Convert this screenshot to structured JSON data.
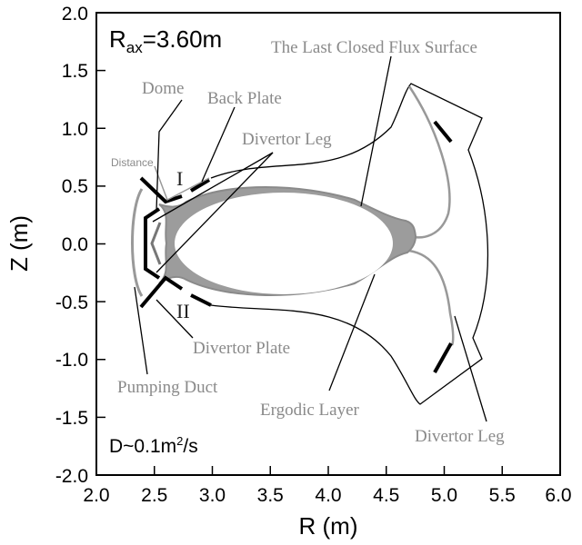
{
  "chart_data": {
    "type": "diagram",
    "xlabel": "R (m)",
    "ylabel": "Z (m)",
    "xlim": [
      2.0,
      6.0
    ],
    "ylim": [
      -2.0,
      2.0
    ],
    "xticks": [
      "2.0",
      "2.5",
      "3.0",
      "3.5",
      "4.0",
      "4.5",
      "5.0",
      "5.5",
      "6.0"
    ],
    "yticks": [
      "2.0",
      "1.5",
      "1.0",
      "0.5",
      "0.0",
      "-0.5",
      "-1.0",
      "-1.5",
      "-2.0"
    ],
    "rax": {
      "prefix": "R",
      "sub": "ax",
      "value": "=3.60m"
    },
    "diffusion": {
      "prefix": "D~0.1m",
      "sup": "2",
      "suffix": "/s"
    },
    "annotations": {
      "lcfs": "The Last Closed Flux Surface",
      "dome": "Dome",
      "back_plate": "Back Plate",
      "divertor_leg_upper": "Divertor Leg",
      "distance": "Distance",
      "roman_1": "I",
      "roman_2": "II",
      "divertor_plate": "Divertor Plate",
      "pumping_duct": "Pumping Duct",
      "ergodic_layer": "Ergodic Layer",
      "divertor_leg_lower": "Divertor Leg"
    },
    "colors": {
      "structure": "#000000",
      "plasma": "#999999",
      "annotation": "#8a8a8a"
    }
  }
}
